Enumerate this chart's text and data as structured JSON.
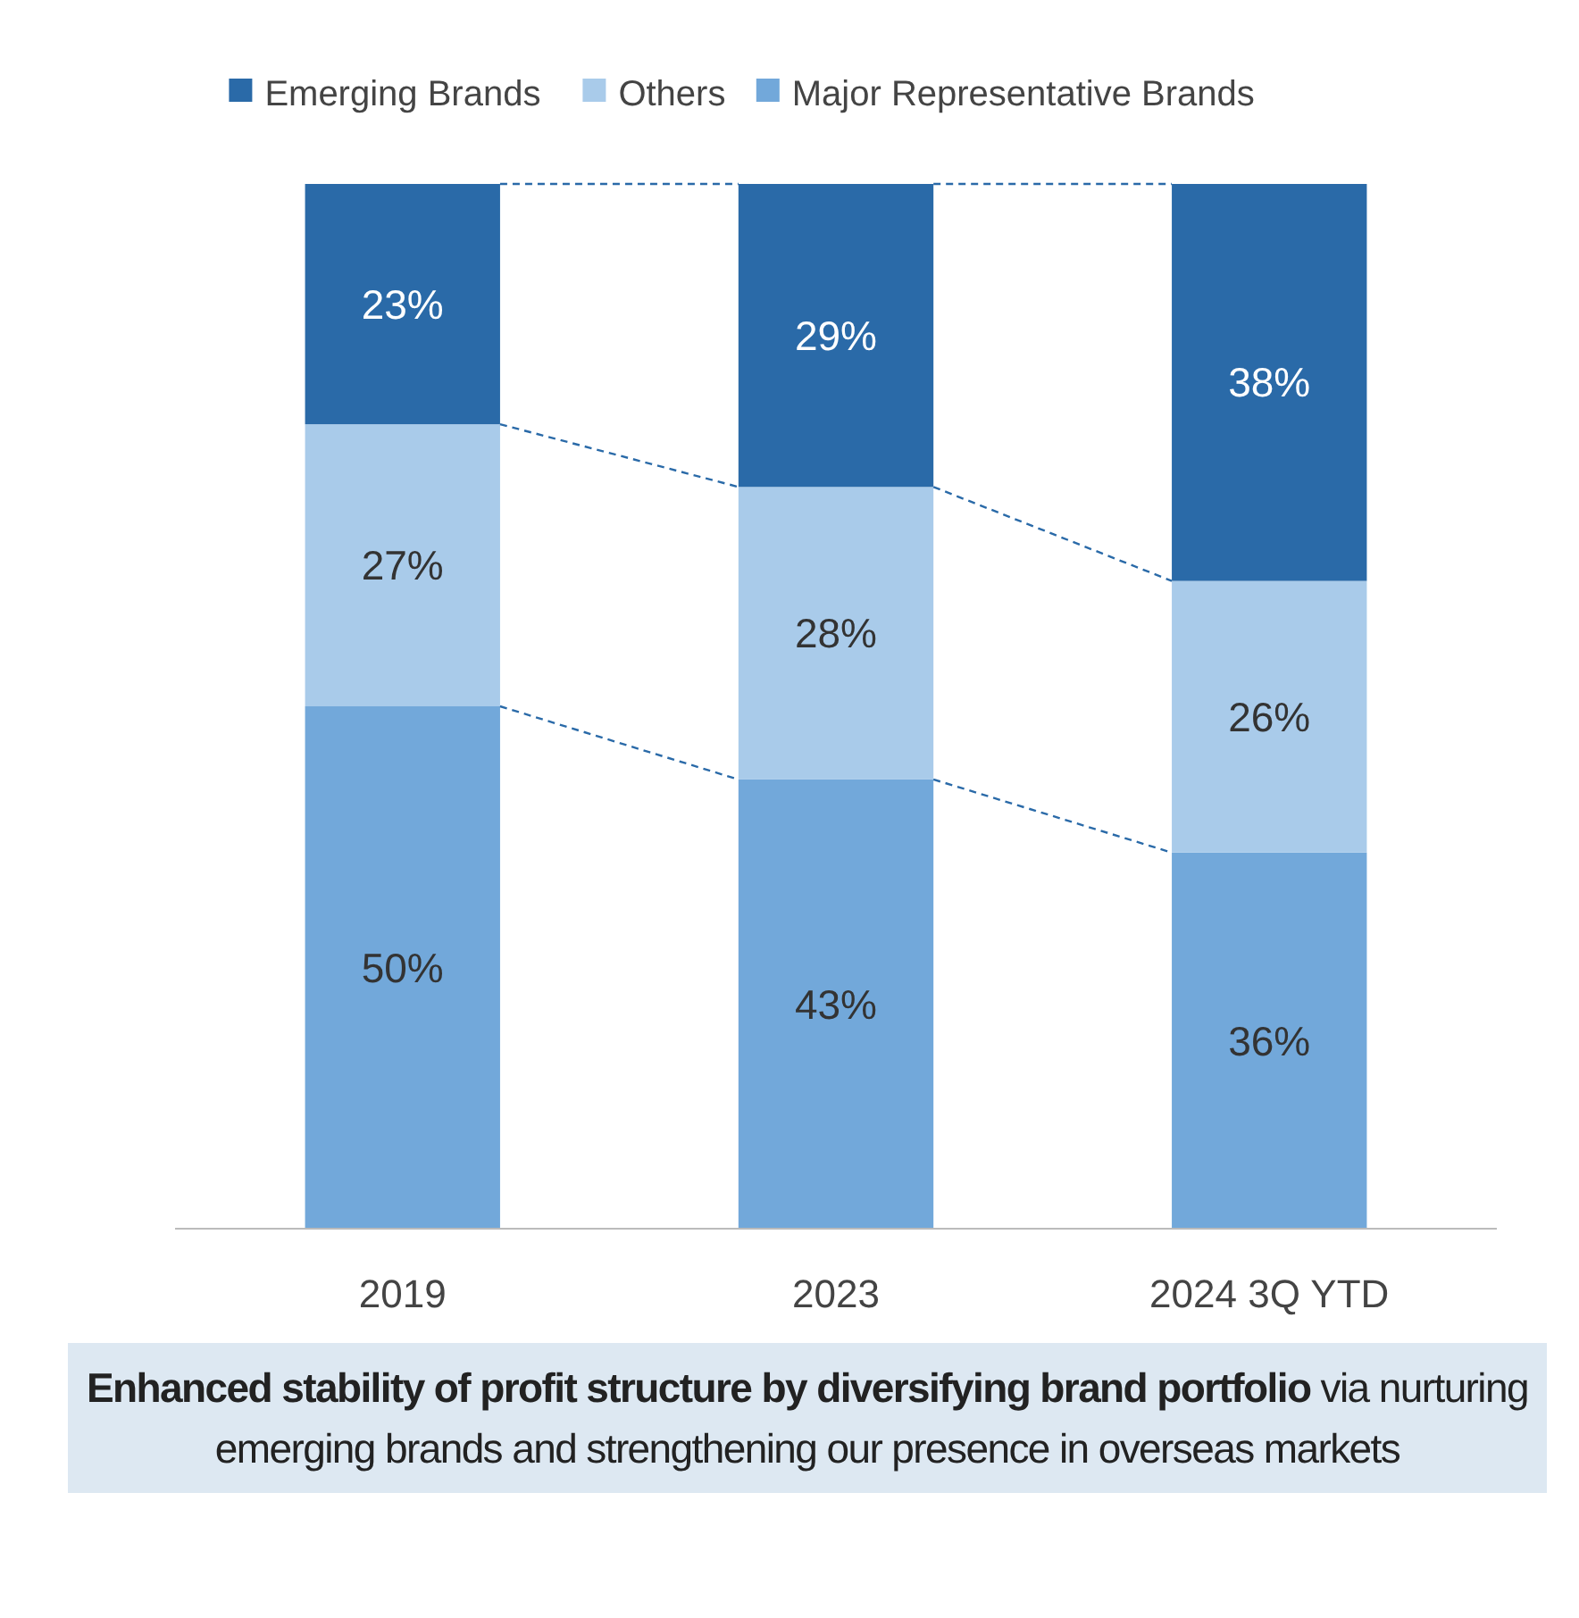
{
  "chart_data": {
    "type": "bar",
    "stacked": true,
    "categories": [
      "2019",
      "2023",
      "2024 3Q YTD"
    ],
    "series": [
      {
        "name": "Major Representative Brands",
        "color": "#72a8da",
        "values": [
          50,
          43,
          36
        ],
        "value_labels": [
          "50%",
          "43%",
          "36%"
        ]
      },
      {
        "name": "Others",
        "color": "#a9cbea",
        "values": [
          27,
          28,
          26
        ],
        "value_labels": [
          "27%",
          "28%",
          "26%"
        ]
      },
      {
        "name": "Emerging Brands",
        "color": "#2a6aa8",
        "values": [
          23,
          29,
          38
        ],
        "value_labels": [
          "23%",
          "29%",
          "38%"
        ]
      }
    ],
    "legend": "top",
    "annotations": [
      "Enhanced stability of profit structure by diversifying brand portfolio",
      "via nurturing emerging brands and strengthening our presence in overseas markets"
    ]
  }
}
